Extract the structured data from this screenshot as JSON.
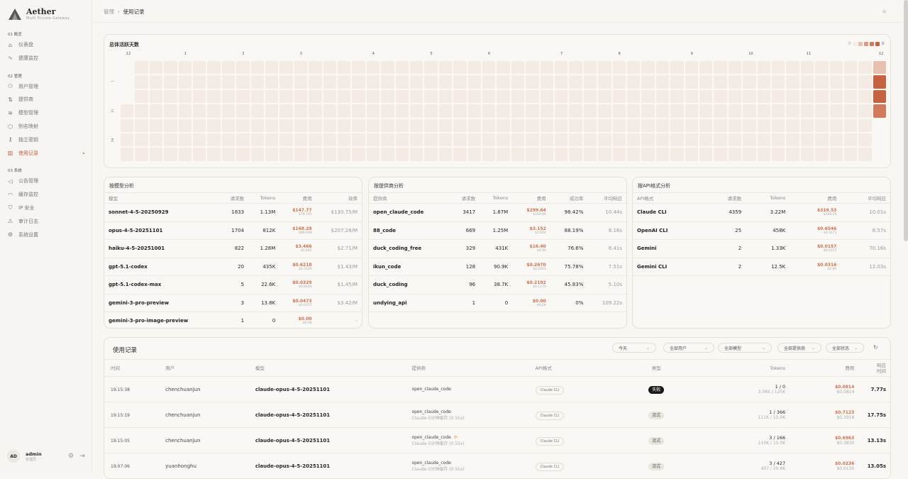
{
  "app": {
    "name": "Aether",
    "subtitle": "Multi Private Gateway"
  },
  "sidebar": {
    "sections": [
      {
        "label": "01 概览",
        "items": [
          {
            "label": "仪表盘",
            "icon": "home-icon"
          },
          {
            "label": "健康监控",
            "icon": "activity-icon"
          }
        ]
      },
      {
        "label": "02 管理",
        "items": [
          {
            "label": "用户管理",
            "icon": "users-icon"
          },
          {
            "label": "提供商",
            "icon": "provider-icon"
          },
          {
            "label": "模型管理",
            "icon": "layers-icon"
          },
          {
            "label": "别名映射",
            "icon": "tag-icon"
          },
          {
            "label": "独立密钥",
            "icon": "key-icon"
          },
          {
            "label": "使用记录",
            "icon": "bar-chart-icon",
            "active": true
          }
        ]
      },
      {
        "label": "03 系统",
        "items": [
          {
            "label": "公告管理",
            "icon": "megaphone-icon"
          },
          {
            "label": "缓存监控",
            "icon": "gauge-icon"
          },
          {
            "label": "IP 安全",
            "icon": "shield-icon"
          },
          {
            "label": "审计日志",
            "icon": "alert-icon"
          },
          {
            "label": "系统设置",
            "icon": "settings-icon"
          }
        ]
      }
    ],
    "user": {
      "initials": "AD",
      "name": "admin",
      "role": "管理员"
    }
  },
  "breadcrumb": {
    "parent": "管理",
    "current": "使用记录"
  },
  "heatmap": {
    "title": "总体活跃天数",
    "legend_less": "少",
    "legend_more": "多",
    "colors": [
      "#f5ebe5",
      "#e8c0b0",
      "#dd9a82",
      "#d37a5d",
      "#c8613f"
    ],
    "months": [
      "12",
      "1",
      "2",
      "3",
      "4",
      "5",
      "6",
      "7",
      "8",
      "9",
      "10",
      "11",
      "12"
    ],
    "day_labels": [
      "一",
      "三",
      "五"
    ],
    "weeks": 53,
    "last_week_levels": [
      1,
      4,
      4,
      3
    ]
  },
  "model_table": {
    "title": "按模型分析",
    "headers": [
      "模型",
      "请求数",
      "Tokens",
      "费用",
      "效率"
    ],
    "rows": [
      [
        "sonnet-4-5-20250929",
        "1833",
        "1.13M",
        "$147.77",
        "$78.745",
        "$130.75/M"
      ],
      [
        "opus-4-5-20251101",
        "1704",
        "812K",
        "$168.29",
        "$86.608",
        "$207.28/M"
      ],
      [
        "haiku-4-5-20251001",
        "822",
        "1.28M",
        "$3.466",
        "$2.845",
        "$2.71/M"
      ],
      [
        "gpt-5.1-codex",
        "20",
        "435K",
        "$0.6218",
        "$0.3109",
        "$1.43/M"
      ],
      [
        "gpt-5.1-codex-max",
        "5",
        "22.6K",
        "$0.0329",
        "$0.0164",
        "$1.45/M"
      ],
      [
        "gemini-3-pro-preview",
        "3",
        "13.8K",
        "$0.0473",
        "$0.0157",
        "$3.42/M"
      ],
      [
        "gemini-3-pro-image-preview",
        "1",
        "0",
        "$0.00",
        "$0.00",
        "-"
      ]
    ]
  },
  "provider_table": {
    "title": "按提供商分析",
    "headers": [
      "提供商",
      "请求数",
      "Tokens",
      "费用",
      "成功率",
      "平均响应"
    ],
    "rows": [
      [
        "open_claude_code",
        "3417",
        "1.87M",
        "$299.64",
        "$164.80",
        "98.42%",
        "10.44s"
      ],
      [
        "88_code",
        "669",
        "1.25M",
        "$3.152",
        "$2.824",
        "88.19%",
        "8.16s"
      ],
      [
        "duck_coding_free",
        "329",
        "431K",
        "$16.40",
        "$0.00",
        "76.6%",
        "6.41s"
      ],
      [
        "ikun_code",
        "128",
        "90.9K",
        "$0.2670",
        "$0.2403",
        "75.78%",
        "7.51s"
      ],
      [
        "duck_coding",
        "96",
        "38.7K",
        "$0.2192",
        "$0.1175",
        "45.83%",
        "5.10s"
      ],
      [
        "undying_api",
        "1",
        "0",
        "$0.00",
        "$0.00",
        "0%",
        "109.22s"
      ]
    ]
  },
  "api_table": {
    "title": "按API格式分析",
    "headers": [
      "API格式",
      "请求数",
      "Tokens",
      "费用",
      "平均响应"
    ],
    "rows": [
      [
        "Claude CLI",
        "4359",
        "3.22M",
        "$319.53",
        "$168.20",
        "10.01s"
      ],
      [
        "OpenAI CLI",
        "25",
        "458K",
        "$0.6546",
        "$0.3273",
        "8.57s"
      ],
      [
        "Gemini",
        "2",
        "1.33K",
        "$0.0157",
        "$0.0157",
        "70.16s"
      ],
      [
        "Gemini CLI",
        "2",
        "12.5K",
        "$0.0316",
        "$0.00",
        "12.03s"
      ]
    ]
  },
  "usage": {
    "title": "使用记录",
    "filters": [
      "今天",
      "全部用户",
      "全部模型",
      "全部提供商",
      "全部状态"
    ],
    "headers": [
      "时间",
      "用户",
      "模型",
      "提供商",
      "API格式",
      "类型",
      "Tokens",
      "费用",
      "响应\n时间"
    ],
    "rows": [
      {
        "time": "19:15:38",
        "user": "chenchuanjun",
        "model": "claude-opus-4-5-20251101",
        "provider": "open_claude_code",
        "provider_sub": "",
        "api": "Claude CLI",
        "type": "失败",
        "type_style": "fail",
        "tokens": "1 / 0",
        "tokens_sub": "3.06K / 125K",
        "cost": "$0.0814",
        "cost_sub": "$0.0814",
        "resp": "7.77s"
      },
      {
        "time": "19:15:19",
        "user": "chenchuanjun",
        "model": "claude-opus-4-5-20251101",
        "provider": "open_claude_code",
        "provider_sub": "Claude-5分钟缓存 (0.55x)",
        "api": "Claude CLI",
        "type": "流式",
        "type_style": "stream",
        "tokens": "1 / 366",
        "tokens_sub": "111K / 15.0K",
        "cost": "$0.7123",
        "cost_sub": "$0.3918",
        "resp": "17.75s"
      },
      {
        "time": "19:15:05",
        "user": "chenchuanjun",
        "model": "claude-opus-4-5-20251101",
        "provider": "open_claude_code",
        "provider_sub": "Claude-5分钟缓存 (0.55x)",
        "retry": true,
        "api": "Claude CLI",
        "type": "流式",
        "type_style": "stream",
        "tokens": "3 / 166",
        "tokens_sub": "110K / 15.0K",
        "cost": "$0.6963",
        "cost_sub": "$0.3830",
        "resp": "13.13s"
      },
      {
        "time": "19:07:06",
        "user": "yuanhonghu",
        "model": "claude-opus-4-5-20251101",
        "provider": "open_claude_code",
        "provider_sub": "Claude-5分钟缓存 (0.55x)",
        "api": "Claude CLI",
        "type": "流式",
        "type_style": "stream",
        "tokens": "3 / 427",
        "tokens_sub": "407 / 20.8K",
        "cost": "$0.0236",
        "cost_sub": "$0.0130",
        "resp": "13.05s"
      }
    ]
  }
}
